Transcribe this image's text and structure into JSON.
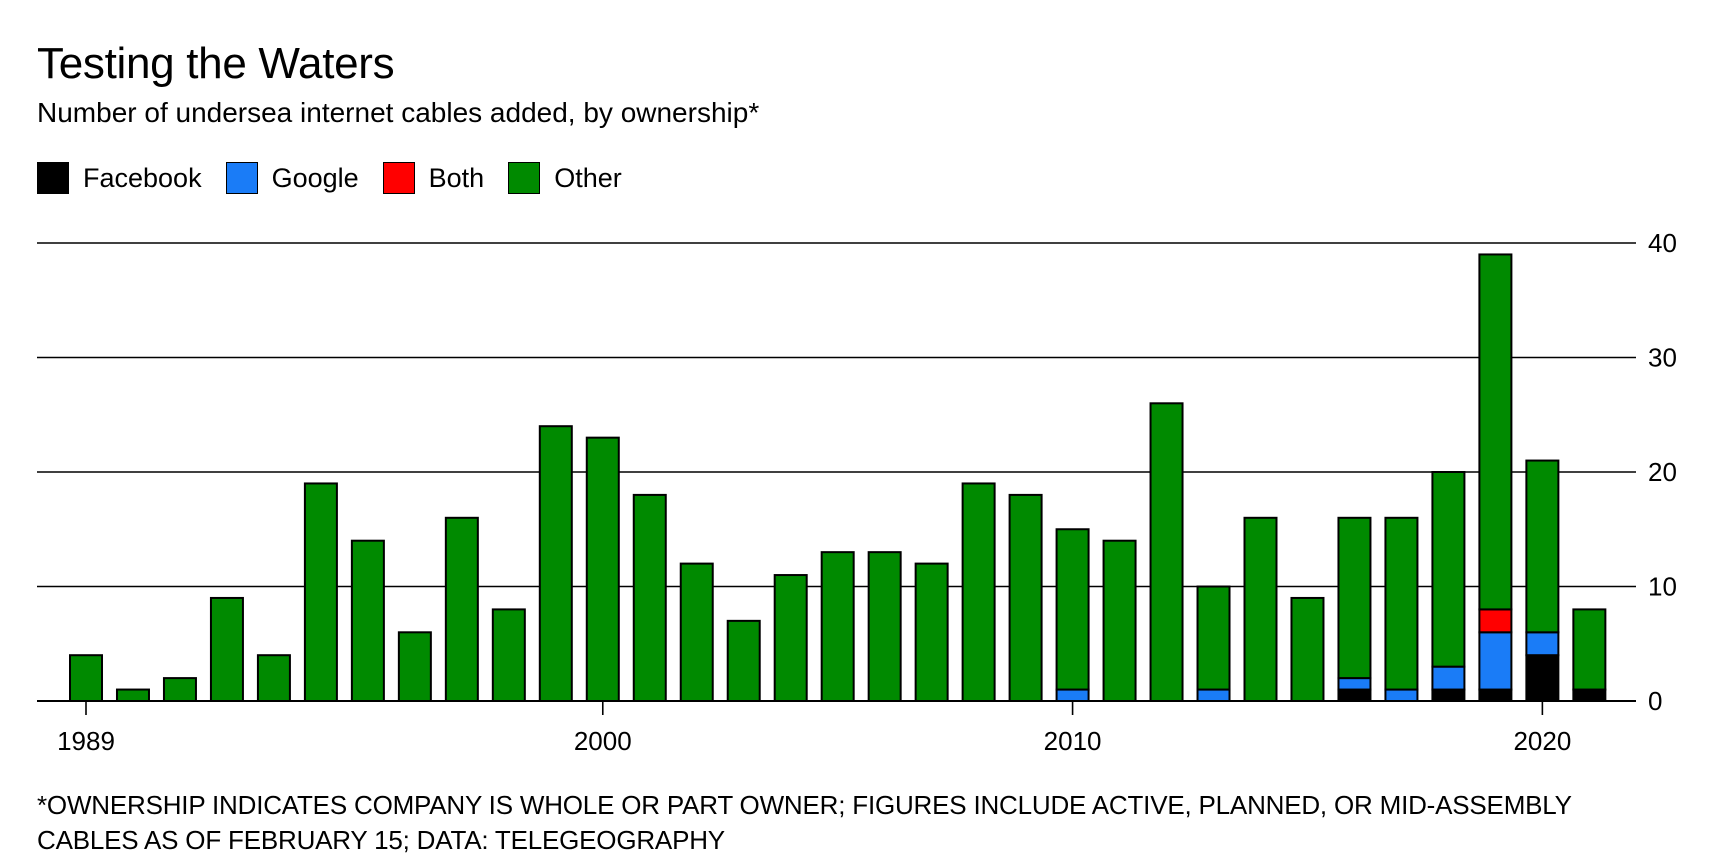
{
  "title": "Testing the Waters",
  "subtitle": "Number of undersea internet cables added, by ownership*",
  "legend": [
    {
      "label": "Facebook",
      "color": "#000000"
    },
    {
      "label": "Google",
      "color": "#1a7cf7"
    },
    {
      "label": "Both",
      "color": "#ff0000"
    },
    {
      "label": "Other",
      "color": "#008a00"
    }
  ],
  "footnote": "*OWNERSHIP INDICATES COMPANY IS WHOLE OR PART OWNER; FIGURES INCLUDE ACTIVE, PLANNED, OR MID-ASSEMBLY CABLES AS OF FEBRUARY 15; DATA: TELEGEOGRAPHY",
  "chart_data": {
    "type": "bar",
    "stacked": true,
    "title": "Testing the Waters",
    "subtitle": "Number of undersea internet cables added, by ownership*",
    "categories": [
      1989,
      1990,
      1991,
      1992,
      1993,
      1994,
      1995,
      1996,
      1997,
      1998,
      1999,
      2000,
      2001,
      2002,
      2003,
      2004,
      2005,
      2006,
      2007,
      2008,
      2009,
      2010,
      2011,
      2012,
      2013,
      2014,
      2015,
      2016,
      2017,
      2018,
      2019,
      2020,
      2021
    ],
    "x_tick_labels": [
      "1989",
      "2000",
      "2010",
      "2020"
    ],
    "x_ticks": [
      1989,
      2000,
      2010,
      2020
    ],
    "y_ticks": [
      0,
      10,
      20,
      30,
      40
    ],
    "ylim": [
      0,
      40
    ],
    "y_axis_side": "right",
    "grid": true,
    "legend_position": "top-left",
    "series": [
      {
        "name": "Facebook",
        "color": "#000000",
        "values": [
          0,
          0,
          0,
          0,
          0,
          0,
          0,
          0,
          0,
          0,
          0,
          0,
          0,
          0,
          0,
          0,
          0,
          0,
          0,
          0,
          0,
          0,
          0,
          0,
          0,
          0,
          0,
          1,
          0,
          1,
          1,
          4,
          1
        ]
      },
      {
        "name": "Google",
        "color": "#1a7cf7",
        "values": [
          0,
          0,
          0,
          0,
          0,
          0,
          0,
          0,
          0,
          0,
          0,
          0,
          0,
          0,
          0,
          0,
          0,
          0,
          0,
          0,
          0,
          1,
          0,
          0,
          1,
          0,
          0,
          1,
          1,
          2,
          5,
          2,
          0
        ]
      },
      {
        "name": "Both",
        "color": "#ff0000",
        "values": [
          0,
          0,
          0,
          0,
          0,
          0,
          0,
          0,
          0,
          0,
          0,
          0,
          0,
          0,
          0,
          0,
          0,
          0,
          0,
          0,
          0,
          0,
          0,
          0,
          0,
          0,
          0,
          0,
          0,
          0,
          2,
          0,
          0
        ]
      },
      {
        "name": "Other",
        "color": "#008a00",
        "values": [
          4,
          1,
          2,
          9,
          4,
          19,
          14,
          6,
          16,
          8,
          24,
          23,
          18,
          12,
          7,
          11,
          13,
          13,
          12,
          19,
          18,
          14,
          14,
          26,
          9,
          16,
          9,
          14,
          15,
          17,
          31,
          15,
          7
        ]
      }
    ]
  }
}
